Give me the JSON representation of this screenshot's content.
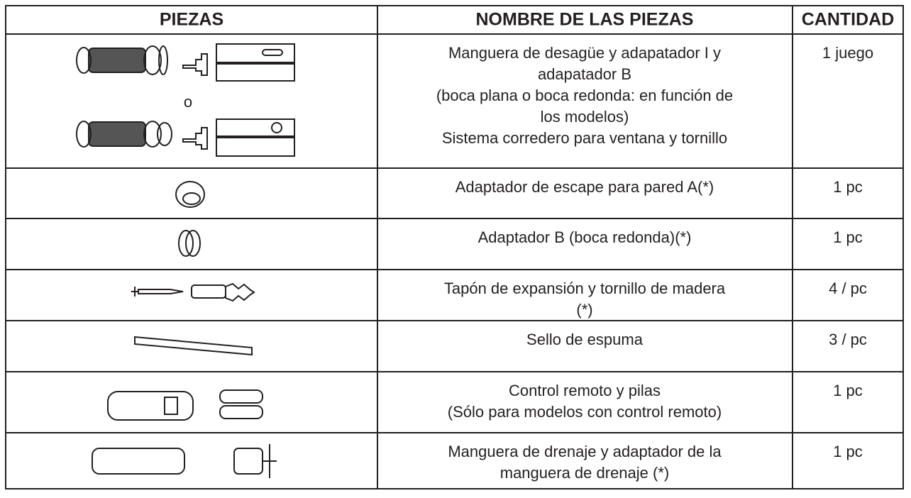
{
  "table": {
    "headers": [
      "PIEZAS",
      "NOMBRE DE LAS PIEZAS",
      "CANTIDAD"
    ],
    "separator": "o",
    "rows": [
      {
        "name": [
          "Manguera de desagüe y adapatador I y",
          "adapatador B",
          "(boca plana o boca redonda: en función de",
          "los modelos)",
          "Sistema corredero para ventana y tornillo"
        ],
        "quantity": "1 juego"
      },
      {
        "name": [
          "Adaptador de escape para pared A(*)"
        ],
        "quantity": "1 pc"
      },
      {
        "name": [
          "Adaptador B (boca redonda)(*)"
        ],
        "quantity": "1 pc"
      },
      {
        "name": [
          "Tapón de expansión y tornillo de madera",
          "(*)"
        ],
        "quantity": "4 / pc"
      },
      {
        "name": [
          "Sello de espuma"
        ],
        "quantity": "3 / pc"
      },
      {
        "name": [
          "Control remoto y pilas",
          "(Sólo para modelos con control remoto)"
        ],
        "quantity": "1 pc"
      },
      {
        "name": [
          "Manguera de drenaje y adaptador de la",
          "manguera de drenaje (*)"
        ],
        "quantity": "1 pc"
      }
    ]
  }
}
